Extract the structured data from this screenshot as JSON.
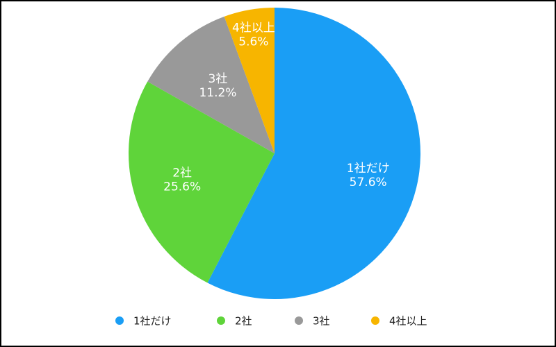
{
  "chart_data": {
    "type": "pie",
    "categories": [
      "1社だけ",
      "2社",
      "3社",
      "4社以上"
    ],
    "values": [
      57.6,
      25.6,
      11.2,
      5.6
    ],
    "value_labels": [
      "57.6%",
      "25.6%",
      "11.2%",
      "5.6%"
    ],
    "colors": [
      "#1a9ef5",
      "#5fd43a",
      "#999999",
      "#f7b500"
    ],
    "legend": "bottom"
  }
}
